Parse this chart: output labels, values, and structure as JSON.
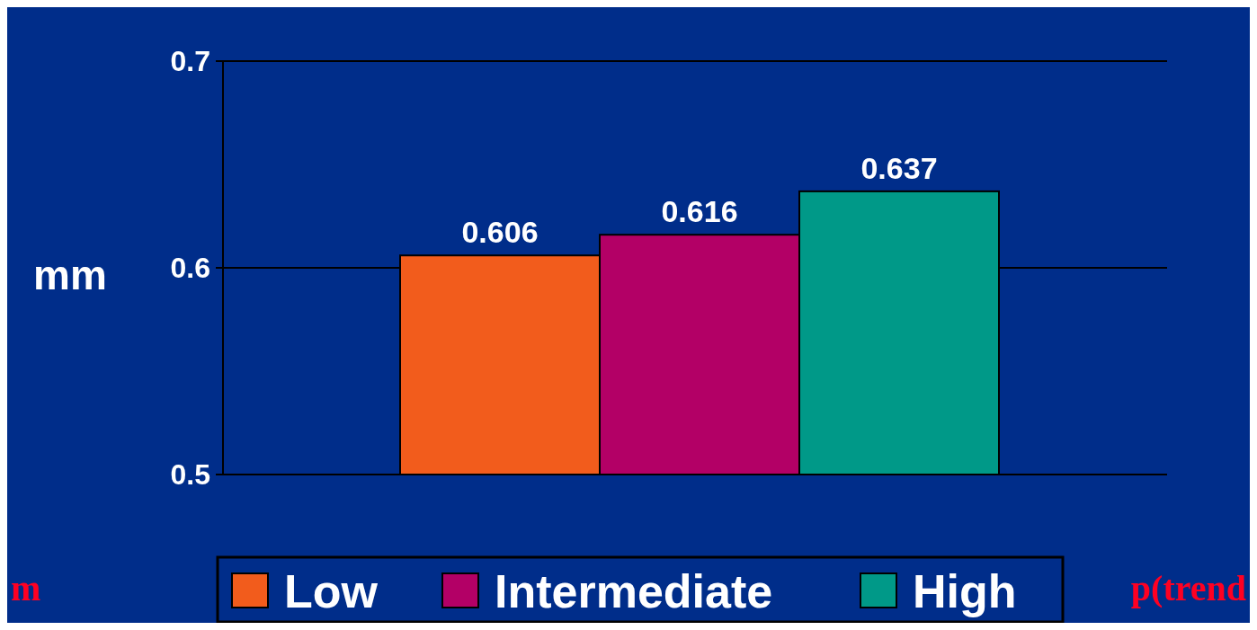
{
  "chart_data": {
    "type": "bar",
    "ylabel": "mm",
    "categories": [
      null
    ],
    "series": [
      {
        "name": "Low",
        "color": "#f25c1c",
        "values": [
          0.606
        ]
      },
      {
        "name": "Intermediate",
        "color": "#b30066",
        "values": [
          0.616
        ]
      },
      {
        "name": "High",
        "color": "#009988",
        "values": [
          0.637
        ]
      }
    ],
    "ylim": [
      0.5,
      0.7
    ],
    "yticks": [
      0.5,
      0.6,
      0.7
    ],
    "grid": "y",
    "data_labels": true,
    "legend": "bottom",
    "annotations": [
      "m",
      "p(trend"
    ]
  }
}
